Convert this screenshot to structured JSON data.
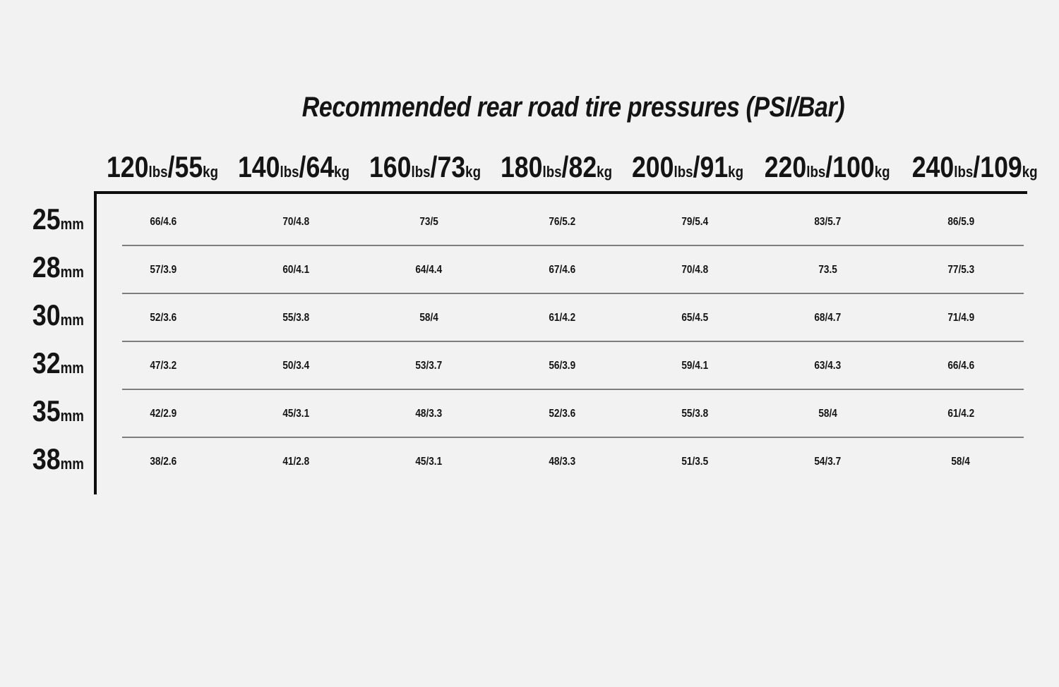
{
  "chart_data": {
    "type": "table",
    "title": "Recommended rear road tire pressures (PSI/Bar)",
    "unit_labels": {
      "weight_primary": "lbs",
      "weight_secondary": "kg",
      "tire_width": "mm"
    },
    "columns": [
      {
        "lbs": "120",
        "kg": "55"
      },
      {
        "lbs": "140",
        "kg": "64"
      },
      {
        "lbs": "160",
        "kg": "73"
      },
      {
        "lbs": "180",
        "kg": "82"
      },
      {
        "lbs": "200",
        "kg": "91"
      },
      {
        "lbs": "220",
        "kg": "100"
      },
      {
        "lbs": "240",
        "kg": "109"
      }
    ],
    "rows": [
      {
        "tire_width": "25",
        "values": [
          "66/4.6",
          "70/4.8",
          "73/5",
          "76/5.2",
          "79/5.4",
          "83/5.7",
          "86/5.9"
        ]
      },
      {
        "tire_width": "28",
        "values": [
          "57/3.9",
          "60/4.1",
          "64/4.4",
          "67/4.6",
          "70/4.8",
          "73.5",
          "77/5.3"
        ]
      },
      {
        "tire_width": "30",
        "values": [
          "52/3.6",
          "55/3.8",
          "58/4",
          "61/4.2",
          "65/4.5",
          "68/4.7",
          "71/4.9"
        ]
      },
      {
        "tire_width": "32",
        "values": [
          "47/3.2",
          "50/3.4",
          "53/3.7",
          "56/3.9",
          "59/4.1",
          "63/4.3",
          "66/4.6"
        ]
      },
      {
        "tire_width": "35",
        "values": [
          "42/2.9",
          "45/3.1",
          "48/3.3",
          "52/3.6",
          "55/3.8",
          "58/4",
          "61/4.2"
        ]
      },
      {
        "tire_width": "38",
        "values": [
          "38/2.6",
          "41/2.8",
          "45/3.1",
          "48/3.3",
          "51/3.5",
          "54/3.7",
          "58/4"
        ]
      }
    ]
  },
  "colors": {
    "background": "#f2f2f2",
    "text": "#141414",
    "grid_thick": "#0d0d0d",
    "grid_thin": "#7d7d7d"
  }
}
